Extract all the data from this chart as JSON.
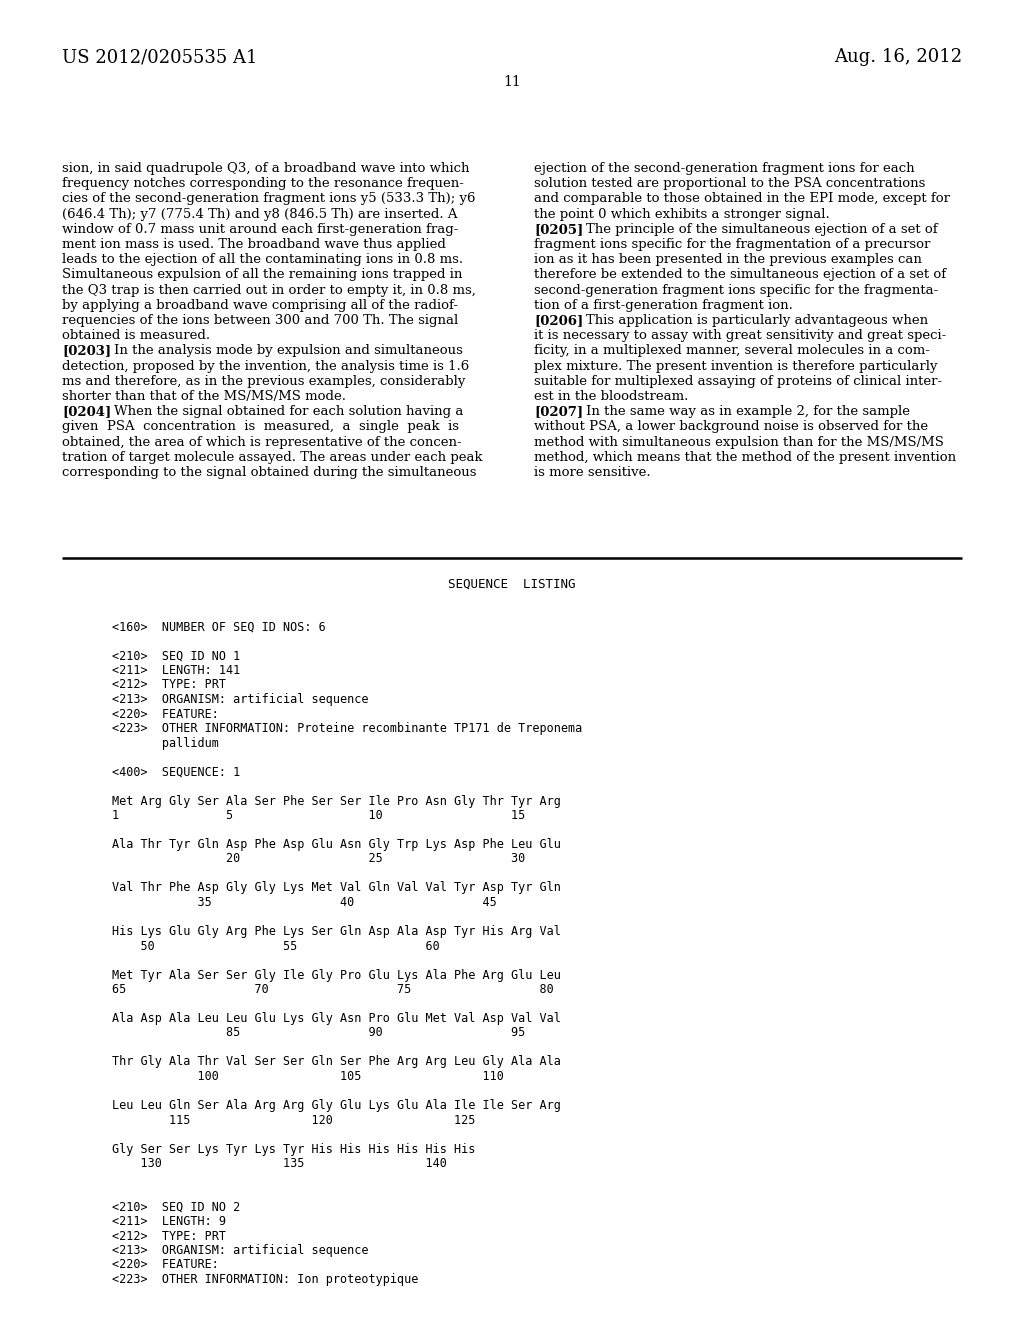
{
  "background_color": "#ffffff",
  "header_left": "US 2012/0205535 A1",
  "header_right": "Aug. 16, 2012",
  "page_number": "11",
  "left_col_text": [
    "sion, in said quadrupole Q3, of a broadband wave into which",
    "frequency notches corresponding to the resonance frequen-",
    "cies of the second-generation fragment ions y5 (533.3 Th); y6",
    "(646.4 Th); y7 (775.4 Th) and y8 (846.5 Th) are inserted. A",
    "window of 0.7 mass unit around each first-generation frag-",
    "ment ion mass is used. The broadband wave thus applied",
    "leads to the ejection of all the contaminating ions in 0.8 ms.",
    "Simultaneous expulsion of all the remaining ions trapped in",
    "the Q3 trap is then carried out in order to empty it, in 0.8 ms,",
    "by applying a broadband wave comprising all of the radiof-",
    "requencies of the ions between 300 and 700 Th. The signal",
    "obtained is measured.",
    "[0203]    In the analysis mode by expulsion and simultaneous",
    "detection, proposed by the invention, the analysis time is 1.6",
    "ms and therefore, as in the previous examples, considerably",
    "shorter than that of the MS/MS/MS mode.",
    "[0204]    When the signal obtained for each solution having a",
    "given  PSA  concentration  is  measured,  a  single  peak  is",
    "obtained, the area of which is representative of the concen-",
    "tration of target molecule assayed. The areas under each peak",
    "corresponding to the signal obtained during the simultaneous"
  ],
  "right_col_text": [
    "ejection of the second-generation fragment ions for each",
    "solution tested are proportional to the PSA concentrations",
    "and comparable to those obtained in the EPI mode, except for",
    "the point 0 which exhibits a stronger signal.",
    "[0205]    The principle of the simultaneous ejection of a set of",
    "fragment ions specific for the fragmentation of a precursor",
    "ion as it has been presented in the previous examples can",
    "therefore be extended to the simultaneous ejection of a set of",
    "second-generation fragment ions specific for the fragmenta-",
    "tion of a first-generation fragment ion.",
    "[0206]    This application is particularly advantageous when",
    "it is necessary to assay with great sensitivity and great speci-",
    "ficity, in a multiplexed manner, several molecules in a com-",
    "plex mixture. The present invention is therefore particularly",
    "suitable for multiplexed assaying of proteins of clinical inter-",
    "est in the bloodstream.",
    "[0207]    In the same way as in example 2, for the sample",
    "without PSA, a lower background noise is observed for the",
    "method with simultaneous expulsion than for the MS/MS/MS",
    "method, which means that the method of the present invention",
    "is more sensitive."
  ],
  "seq_listing_title": "SEQUENCE  LISTING",
  "seq_lines": [
    "",
    "<160>  NUMBER OF SEQ ID NOS: 6",
    "",
    "<210>  SEQ ID NO 1",
    "<211>  LENGTH: 141",
    "<212>  TYPE: PRT",
    "<213>  ORGANISM: artificial sequence",
    "<220>  FEATURE:",
    "<223>  OTHER INFORMATION: Proteine recombinante TP171 de Treponema",
    "       pallidum",
    "",
    "<400>  SEQUENCE: 1",
    "",
    "Met Arg Gly Ser Ala Ser Phe Ser Ser Ile Pro Asn Gly Thr Tyr Arg",
    "1               5                   10                  15",
    "",
    "Ala Thr Tyr Gln Asp Phe Asp Glu Asn Gly Trp Lys Asp Phe Leu Glu",
    "                20                  25                  30",
    "",
    "Val Thr Phe Asp Gly Gly Lys Met Val Gln Val Val Tyr Asp Tyr Gln",
    "            35                  40                  45",
    "",
    "His Lys Glu Gly Arg Phe Lys Ser Gln Asp Ala Asp Tyr His Arg Val",
    "    50                  55                  60",
    "",
    "Met Tyr Ala Ser Ser Gly Ile Gly Pro Glu Lys Ala Phe Arg Glu Leu",
    "65                  70                  75                  80",
    "",
    "Ala Asp Ala Leu Leu Glu Lys Gly Asn Pro Glu Met Val Asp Val Val",
    "                85                  90                  95",
    "",
    "Thr Gly Ala Thr Val Ser Ser Gln Ser Phe Arg Arg Leu Gly Ala Ala",
    "            100                 105                 110",
    "",
    "Leu Leu Gln Ser Ala Arg Arg Gly Glu Lys Glu Ala Ile Ile Ser Arg",
    "        115                 120                 125",
    "",
    "Gly Ser Ser Lys Tyr Lys Tyr His His His His His His",
    "    130                 135                 140",
    "",
    "",
    "<210>  SEQ ID NO 2",
    "<211>  LENGTH: 9",
    "<212>  TYPE: PRT",
    "<213>  ORGANISM: artificial sequence",
    "<220>  FEATURE:",
    "<223>  OTHER INFORMATION: Ion proteotypique"
  ]
}
